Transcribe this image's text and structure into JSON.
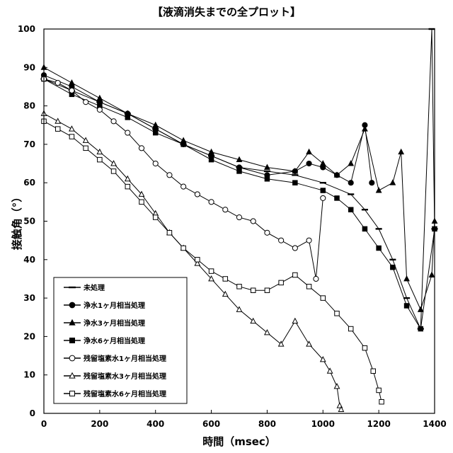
{
  "chart_data": {
    "type": "scatter",
    "title": "【液滴消失までの全プロット】",
    "xlabel": "時間（msec）",
    "ylabel": "接触角（°）",
    "xlim": [
      0,
      1400
    ],
    "ylim": [
      0,
      100
    ],
    "xticks": [
      "0",
      "200",
      "400",
      "600",
      "800",
      "1000",
      "1200",
      "1400"
    ],
    "yticks": [
      "0",
      "10",
      "20",
      "30",
      "40",
      "50",
      "60",
      "70",
      "80",
      "90",
      "100"
    ],
    "grid": false,
    "legend_position": "bottom-left",
    "series": [
      {
        "name": "未処理",
        "marker": "dash",
        "filled": true,
        "x": [
          0,
          100,
          200,
          300,
          400,
          500,
          600,
          700,
          800,
          900,
          1000,
          1100,
          1150,
          1200,
          1250,
          1300,
          1350,
          1390,
          1400
        ],
        "y": [
          87,
          84,
          81,
          78,
          74,
          70,
          67,
          64,
          63,
          62,
          60,
          57,
          53,
          48,
          40,
          30,
          22,
          100,
          48
        ]
      },
      {
        "name": "浄水1ヶ月相当処理",
        "marker": "circle",
        "filled": true,
        "x": [
          0,
          100,
          200,
          300,
          400,
          500,
          600,
          700,
          800,
          900,
          950,
          1000,
          1050,
          1100,
          1150,
          1175
        ],
        "y": [
          88,
          85,
          81,
          78,
          74,
          70,
          67,
          64,
          62,
          63,
          65,
          64,
          62,
          60,
          75,
          60
        ]
      },
      {
        "name": "浄水3ヶ月相当処理",
        "marker": "triangle",
        "filled": true,
        "x": [
          0,
          100,
          200,
          300,
          400,
          500,
          600,
          700,
          800,
          900,
          950,
          1000,
          1050,
          1100,
          1150,
          1200,
          1250,
          1280,
          1300,
          1350,
          1390,
          1400
        ],
        "y": [
          90,
          86,
          82,
          78,
          75,
          71,
          68,
          66,
          64,
          63,
          68,
          65,
          62,
          65,
          74,
          58,
          60,
          68,
          35,
          27,
          36,
          50
        ]
      },
      {
        "name": "浄水6ヶ月相当処理",
        "marker": "square",
        "filled": true,
        "x": [
          0,
          100,
          200,
          300,
          400,
          500,
          600,
          700,
          800,
          900,
          1000,
          1050,
          1100,
          1150,
          1200,
          1250,
          1300,
          1350,
          1400
        ],
        "y": [
          87,
          83,
          80,
          77,
          73,
          70,
          66,
          63,
          61,
          60,
          58,
          56,
          53,
          48,
          43,
          38,
          28,
          22,
          48
        ]
      },
      {
        "name": "残留塩素水1ヶ月相当処理",
        "marker": "circle",
        "filled": false,
        "x": [
          0,
          50,
          100,
          150,
          200,
          250,
          300,
          350,
          400,
          450,
          500,
          550,
          600,
          650,
          700,
          750,
          800,
          850,
          900,
          950,
          975,
          1000
        ],
        "y": [
          87,
          86,
          84,
          81,
          79,
          76,
          73,
          69,
          65,
          62,
          59,
          57,
          55,
          53,
          51,
          50,
          47,
          45,
          43,
          45,
          35,
          56
        ]
      },
      {
        "name": "残留塩素水3ヶ月相当処理",
        "marker": "triangle",
        "filled": false,
        "x": [
          0,
          50,
          100,
          150,
          200,
          250,
          300,
          350,
          400,
          450,
          500,
          550,
          600,
          650,
          700,
          750,
          800,
          850,
          900,
          950,
          1000,
          1025,
          1050,
          1060,
          1065
        ],
        "y": [
          78,
          76,
          74,
          71,
          68,
          65,
          61,
          57,
          52,
          47,
          43,
          39,
          35,
          31,
          27,
          24,
          21,
          18,
          24,
          18,
          14,
          11,
          7,
          2,
          1
        ]
      },
      {
        "name": "残留塩素水6ヶ月相当処理",
        "marker": "square",
        "filled": false,
        "x": [
          0,
          50,
          100,
          150,
          200,
          250,
          300,
          350,
          400,
          450,
          500,
          550,
          600,
          650,
          700,
          750,
          800,
          850,
          900,
          950,
          1000,
          1050,
          1100,
          1150,
          1180,
          1200,
          1210
        ],
        "y": [
          76,
          74,
          72,
          69,
          66,
          63,
          59,
          55,
          51,
          47,
          43,
          40,
          37,
          35,
          33,
          32,
          32,
          34,
          36,
          33,
          30,
          26,
          22,
          17,
          11,
          6,
          3
        ]
      }
    ]
  }
}
